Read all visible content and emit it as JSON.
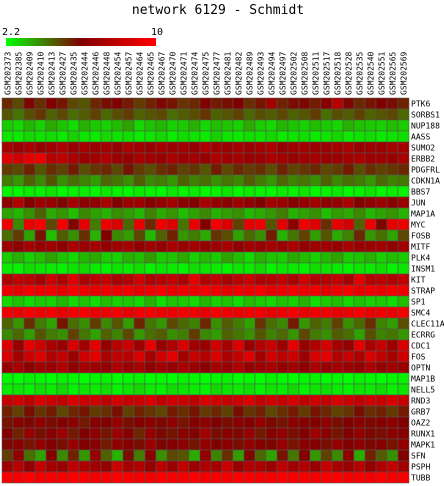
{
  "chart_data": {
    "type": "heatmap",
    "title": "network 6129 - Schmidt",
    "color_scale": {
      "min": 2.2,
      "max": 10,
      "min_label": "2.2",
      "max_label": "10",
      "low_color": "#00ff00",
      "mid_color": "#800000",
      "high_color": "#ff0000"
    },
    "columns": [
      "GSM202373",
      "GSM202385",
      "GSM202409",
      "GSM202410",
      "GSM202413",
      "GSM202427",
      "GSM202435",
      "GSM202444",
      "GSM202446",
      "GSM202448",
      "GSM202454",
      "GSM202457",
      "GSM202464",
      "GSM202465",
      "GSM202467",
      "GSM202470",
      "GSM202471",
      "GSM202474",
      "GSM202475",
      "GSM202477",
      "GSM202481",
      "GSM202482",
      "GSM202489",
      "GSM202493",
      "GSM202494",
      "GSM202497",
      "GSM202502",
      "GSM202508",
      "GSM202511",
      "GSM202517",
      "GSM202518",
      "GSM202528",
      "GSM202535",
      "GSM202540",
      "GSM202551",
      "GSM202565",
      "GSM202569"
    ],
    "rows": [
      "PTK6",
      "SORBS1",
      "NUP188",
      "AASS",
      "SUMO2",
      "ERBB2",
      "PDGFRL",
      "CDKN1A",
      "BBS7",
      "JUN",
      "MAP1A",
      "MYC",
      "FOSB",
      "MITF",
      "PLK4",
      "INSM1",
      "KIT",
      "STRAP",
      "SP1",
      "SMC4",
      "CLEC11A",
      "ECRRG",
      "CDC1",
      "FOS",
      "OPTN",
      "MAP1B",
      "NELL5",
      "RND3",
      "GRB7",
      "OAZ2",
      "RUNX1",
      "MAPK1",
      "SFN",
      "PSPH",
      "TUBB"
    ],
    "values": [
      [
        5.5,
        5.0,
        6.0,
        5.4,
        6.2,
        5.8,
        5.0,
        4.8,
        5.5,
        5.9,
        6.1,
        5.7,
        5.2,
        5.6,
        6.0,
        5.8,
        5.3,
        5.5,
        6.2,
        5.7,
        5.9,
        6.1,
        5.4,
        5.8,
        7.2,
        5.6,
        5.9,
        6.0,
        5.7,
        6.4,
        7.8,
        6.0,
        5.5,
        5.8,
        6.1,
        5.9,
        5.6
      ],
      [
        4.8,
        4.3,
        4.9,
        5.3,
        4.6,
        5.0,
        4.4,
        4.7,
        5.1,
        4.5,
        4.9,
        5.2,
        4.6,
        4.8,
        5.0,
        4.4,
        4.7,
        4.9,
        5.3,
        4.6,
        4.8,
        5.1,
        4.5,
        4.9,
        4.7,
        5.0,
        4.6,
        4.8,
        5.2,
        4.4,
        4.9,
        4.7,
        5.1,
        4.6,
        4.8,
        5.0,
        4.5
      ],
      [
        3.0,
        2.8,
        3.3,
        2.9,
        3.5,
        3.1,
        2.7,
        3.4,
        3.0,
        2.9,
        3.2,
        3.6,
        2.8,
        3.1,
        3.3,
        2.9,
        3.0,
        3.4,
        2.8,
        3.2,
        3.1,
        2.9,
        3.5,
        3.0,
        2.8,
        3.3,
        3.1,
        2.9,
        3.2,
        3.0,
        2.8,
        3.4,
        3.1,
        3.0,
        2.9,
        3.2,
        3.0
      ],
      [
        2.6,
        2.5,
        2.8,
        2.6,
        2.7,
        2.5,
        2.9,
        2.6,
        2.5,
        2.8,
        2.6,
        2.7,
        2.5,
        2.6,
        2.8,
        2.5,
        2.7,
        2.6,
        2.5,
        2.9,
        2.6,
        2.5,
        2.7,
        2.6,
        2.8,
        2.5,
        2.6,
        2.7,
        2.5,
        2.6,
        2.8,
        2.5,
        2.6,
        2.7,
        2.5,
        2.6,
        2.7
      ],
      [
        7.2,
        7.0,
        7.4,
        6.8,
        7.1,
        7.5,
        6.9,
        7.3,
        7.0,
        7.2,
        6.8,
        7.4,
        7.1,
        6.9,
        7.3,
        7.0,
        7.2,
        6.8,
        7.5,
        7.1,
        6.9,
        7.3,
        7.0,
        7.2,
        7.4,
        6.8,
        7.1,
        7.3,
        6.9,
        7.0,
        7.2,
        7.4,
        6.8,
        7.1,
        7.0,
        7.3,
        7.2
      ],
      [
        9.0,
        8.6,
        9.2,
        9.4,
        7.8,
        8.0,
        7.4,
        6.9,
        7.2,
        7.6,
        7.0,
        6.8,
        7.3,
        7.1,
        6.9,
        7.4,
        7.0,
        7.2,
        6.8,
        7.5,
        7.1,
        7.3,
        6.9,
        7.0,
        7.4,
        7.2,
        6.8,
        7.1,
        7.3,
        7.0,
        6.9,
        7.2,
        7.4,
        7.0,
        7.1,
        6.8,
        7.3
      ],
      [
        5.2,
        5.0,
        5.6,
        4.8,
        5.4,
        5.1,
        5.7,
        4.9,
        5.3,
        5.5,
        5.0,
        5.8,
        5.2,
        4.9,
        5.4,
        5.6,
        5.1,
        5.3,
        4.8,
        5.7,
        5.0,
        5.5,
        5.2,
        5.4,
        4.9,
        5.6,
        5.1,
        5.3,
        5.5,
        5.0,
        5.2,
        5.7,
        4.9,
        5.4,
        5.1,
        5.3,
        5.5
      ],
      [
        4.2,
        3.8,
        4.6,
        4.0,
        4.8,
        3.9,
        4.4,
        4.1,
        3.7,
        4.5,
        4.3,
        3.9,
        4.7,
        4.0,
        4.2,
        3.8,
        4.6,
        4.1,
        4.4,
        3.9,
        4.3,
        4.0,
        4.7,
        4.2,
        3.8,
        4.5,
        4.1,
        4.3,
        3.9,
        4.6,
        4.0,
        4.4,
        4.2,
        3.8,
        4.5,
        4.1,
        4.3
      ],
      [
        2.4,
        2.3,
        2.5,
        2.4,
        2.6,
        2.3,
        2.4,
        2.5,
        2.3,
        2.6,
        2.4,
        2.3,
        2.5,
        2.4,
        2.3,
        2.6,
        2.4,
        2.5,
        2.3,
        2.4,
        2.6,
        2.3,
        2.5,
        2.4,
        2.3,
        2.5,
        2.4,
        2.6,
        2.3,
        2.4,
        2.5,
        2.3,
        2.4,
        2.6,
        2.3,
        2.5,
        2.4
      ],
      [
        6.5,
        7.6,
        6.2,
        7.0,
        6.8,
        6.0,
        7.2,
        6.4,
        6.6,
        7.4,
        6.1,
        6.9,
        7.0,
        6.3,
        6.7,
        7.1,
        6.5,
        6.2,
        7.3,
        6.8,
        6.4,
        7.0,
        6.6,
        6.1,
        7.2,
        6.9,
        6.3,
        6.7,
        7.1,
        6.5,
        6.8,
        7.4,
        6.2,
        6.6,
        7.0,
        6.4,
        6.9
      ],
      [
        3.6,
        3.3,
        3.9,
        4.6,
        3.5,
        3.8,
        3.2,
        4.0,
        3.6,
        3.4,
        3.9,
        3.7,
        3.3,
        4.1,
        3.5,
        3.8,
        3.2,
        3.6,
        4.0,
        3.4,
        3.7,
        3.9,
        3.3,
        3.5,
        3.8,
        4.2,
        3.4,
        3.6,
        3.9,
        3.2,
        3.7,
        3.5,
        4.0,
        3.3,
        3.6,
        3.8,
        3.4
      ],
      [
        9.6,
        4.0,
        9.4,
        9.8,
        5.0,
        9.7,
        6.0,
        9.2,
        4.2,
        9.5,
        8.8,
        4.5,
        9.3,
        5.5,
        9.6,
        9.0,
        4.3,
        9.4,
        6.2,
        9.7,
        8.9,
        5.1,
        9.2,
        9.5,
        4.8,
        9.1,
        6.5,
        9.6,
        9.0,
        5.4,
        9.3,
        8.7,
        4.6,
        9.4,
        6.0,
        9.2,
        9.5
      ],
      [
        4.4,
        5.2,
        3.6,
        5.8,
        3.2,
        4.7,
        3.9,
        5.4,
        3.4,
        6.1,
        4.0,
        3.7,
        5.0,
        3.3,
        4.6,
        5.6,
        3.8,
        4.2,
        3.5,
        5.3,
        4.9,
        3.6,
        4.5,
        3.9,
        5.7,
        3.4,
        4.3,
        5.1,
        3.7,
        4.8,
        3.5,
        4.1,
        5.5,
        3.8,
        4.4,
        3.6,
        5.0
      ],
      [
        7.0,
        6.6,
        7.3,
        6.8,
        7.1,
        6.5,
        7.4,
        6.9,
        7.2,
        6.7,
        7.0,
        7.3,
        6.6,
        7.1,
        6.8,
        7.4,
        6.9,
        7.2,
        6.7,
        7.0,
        7.3,
        6.6,
        7.1,
        6.8,
        7.2,
        6.9,
        7.4,
        6.7,
        7.0,
        7.1,
        6.8,
        7.3,
        6.9,
        7.0,
        7.2,
        6.6,
        7.1
      ],
      [
        3.0,
        3.4,
        2.9,
        3.2,
        3.6,
        3.1,
        2.8,
        3.3,
        3.5,
        3.0,
        2.9,
        3.4,
        3.2,
        3.7,
        3.0,
        3.1,
        3.5,
        2.9,
        3.3,
        3.0,
        3.6,
        3.2,
        2.8,
        3.4,
        3.1,
        3.0,
        3.5,
        3.2,
        2.9,
        3.3,
        3.6,
        3.0,
        3.1,
        3.4,
        2.9,
        3.2,
        3.0
      ],
      [
        2.5,
        2.4,
        2.7,
        2.6,
        2.5,
        2.4,
        2.6,
        2.8,
        2.5,
        2.4,
        2.6,
        2.5,
        2.7,
        2.4,
        2.6,
        2.5,
        2.4,
        2.7,
        2.6,
        2.5,
        2.4,
        2.6,
        2.5,
        2.8,
        2.4,
        2.6,
        2.5,
        2.4,
        2.7,
        2.6,
        2.5,
        2.4,
        2.6,
        2.5,
        2.7,
        2.4,
        2.6
      ],
      [
        7.5,
        8.0,
        7.8,
        7.2,
        8.4,
        7.6,
        9.0,
        7.4,
        7.9,
        8.2,
        7.3,
        7.7,
        8.6,
        7.5,
        7.8,
        8.1,
        7.4,
        9.2,
        7.6,
        8.0,
        7.3,
        7.9,
        8.3,
        7.5,
        7.7,
        8.0,
        7.4,
        8.5,
        7.6,
        7.8,
        8.2,
        7.3,
        9.1,
        7.7,
        7.9,
        7.5,
        8.1
      ],
      [
        9.5,
        9.3,
        9.7,
        9.4,
        9.6,
        9.2,
        9.8,
        9.5,
        9.3,
        9.6,
        9.4,
        9.7,
        9.2,
        9.5,
        9.8,
        9.3,
        9.6,
        9.4,
        9.7,
        9.5,
        9.2,
        9.6,
        9.4,
        9.8,
        9.3,
        9.5,
        9.7,
        9.4,
        9.6,
        9.2,
        9.5,
        9.8,
        9.3,
        9.6,
        9.4,
        9.7,
        9.5
      ],
      [
        2.8,
        3.1,
        2.7,
        3.0,
        2.9,
        3.3,
        2.8,
        3.1,
        2.7,
        3.2,
        2.9,
        3.0,
        2.8,
        3.4,
        2.7,
        3.1,
        3.0,
        2.8,
        3.3,
        2.9,
        3.1,
        2.7,
        3.2,
        3.0,
        2.8,
        3.1,
        2.9,
        3.4,
        2.7,
        3.0,
        3.2,
        2.8,
        3.1,
        2.9,
        3.0,
        2.7,
        3.2
      ],
      [
        9.6,
        9.4,
        9.8,
        9.5,
        9.7,
        9.3,
        9.6,
        9.8,
        9.4,
        9.5,
        9.7,
        9.3,
        9.6,
        9.8,
        9.4,
        9.5,
        9.7,
        9.6,
        9.3,
        9.8,
        9.5,
        9.4,
        9.7,
        9.6,
        9.3,
        9.5,
        9.8,
        9.4,
        9.6,
        9.7,
        9.3,
        9.5,
        9.8,
        9.4,
        9.6,
        9.5,
        9.7
      ],
      [
        4.6,
        3.8,
        5.4,
        4.2,
        3.6,
        5.8,
        4.4,
        3.9,
        5.2,
        4.0,
        4.8,
        3.7,
        5.6,
        4.3,
        3.8,
        5.0,
        4.5,
        4.1,
        5.5,
        3.9,
        4.7,
        4.2,
        3.6,
        5.3,
        4.4,
        4.0,
        5.7,
        3.8,
        4.6,
        4.2,
        5.1,
        3.9,
        4.5,
        5.4,
        4.1,
        3.7,
        4.9
      ],
      [
        4.0,
        4.5,
        3.7,
        4.8,
        4.2,
        3.9,
        5.1,
        4.3,
        3.6,
        4.6,
        4.1,
        5.0,
        3.8,
        4.4,
        4.7,
        3.9,
        4.2,
        5.2,
        4.0,
        3.7,
        4.6,
        4.3,
        3.9,
        4.8,
        4.1,
        4.5,
        3.8,
        5.0,
        4.2,
        3.9,
        4.7,
        4.4,
        3.6,
        4.9,
        4.1,
        4.3,
        3.8
      ],
      [
        9.0,
        6.8,
        9.2,
        8.5,
        7.4,
        6.9,
        8.8,
        7.2,
        9.1,
        6.7,
        7.8,
        8.4,
        7.0,
        9.3,
        6.8,
        7.5,
        8.9,
        7.1,
        6.9,
        8.6,
        7.3,
        9.0,
        6.8,
        7.7,
        8.3,
        7.0,
        9.2,
        6.9,
        7.6,
        8.7,
        7.2,
        6.8,
        9.1,
        7.4,
        8.2,
        7.0,
        8.8
      ],
      [
        8.8,
        7.2,
        8.4,
        9.0,
        7.6,
        8.2,
        7.0,
        8.6,
        9.2,
        7.4,
        8.0,
        7.8,
        8.9,
        7.3,
        8.5,
        9.1,
        7.1,
        8.3,
        7.7,
        8.8,
        7.5,
        8.1,
        9.0,
        7.2,
        8.6,
        7.9,
        8.4,
        7.0,
        8.7,
        9.2,
        7.6,
        8.2,
        7.4,
        8.9,
        8.0,
        7.3,
        8.5
      ],
      [
        6.8,
        7.4,
        6.5,
        7.1,
        6.9,
        7.6,
        6.6,
        7.2,
        7.0,
        6.7,
        7.5,
        6.9,
        7.3,
        6.6,
        7.1,
        6.8,
        7.4,
        7.0,
        6.5,
        7.2,
        6.9,
        7.6,
        6.7,
        7.0,
        7.3,
        6.8,
        7.1,
        6.6,
        7.4,
        6.9,
        7.2,
        7.0,
        6.7,
        7.5,
        6.8,
        7.1,
        6.9
      ],
      [
        2.3,
        2.2,
        2.4,
        2.3,
        2.2,
        2.4,
        2.3,
        2.2,
        2.3,
        2.4,
        2.2,
        2.3,
        2.4,
        2.2,
        2.3,
        2.2,
        2.4,
        2.3,
        2.2,
        2.3,
        2.4,
        2.2,
        2.3,
        2.2,
        2.4,
        2.3,
        2.2,
        2.3,
        2.4,
        2.2,
        2.3,
        2.2,
        2.4,
        2.3,
        2.2,
        2.3,
        2.4
      ],
      [
        2.5,
        2.6,
        2.4,
        2.7,
        2.5,
        2.8,
        2.4,
        2.6,
        2.5,
        2.7,
        2.4,
        2.6,
        2.8,
        2.5,
        2.4,
        2.7,
        2.6,
        2.5,
        2.4,
        2.8,
        2.6,
        2.5,
        2.7,
        2.4,
        2.6,
        2.5,
        2.8,
        2.4,
        2.6,
        2.7,
        2.5,
        2.4,
        2.6,
        2.5,
        2.7,
        2.4,
        2.6
      ],
      [
        8.2,
        8.6,
        8.0,
        8.8,
        8.4,
        8.1,
        8.9,
        8.3,
        8.5,
        8.0,
        8.7,
        8.2,
        8.4,
        8.9,
        8.1,
        8.6,
        8.3,
        8.0,
        8.8,
        8.5,
        8.2,
        8.4,
        8.9,
        8.1,
        8.6,
        8.3,
        8.7,
        8.0,
        8.5,
        8.2,
        8.8,
        8.4,
        8.1,
        8.6,
        8.3,
        8.9,
        8.2
      ],
      [
        5.6,
        5.1,
        5.9,
        5.3,
        5.7,
        5.0,
        5.5,
        5.8,
        5.2,
        5.4,
        5.9,
        5.1,
        5.6,
        5.3,
        5.0,
        5.7,
        5.4,
        5.8,
        5.2,
        5.5,
        5.1,
        5.9,
        5.3,
        5.6,
        5.0,
        5.4,
        5.7,
        5.2,
        5.8,
        5.5,
        5.1,
        5.3,
        5.9,
        5.4,
        5.6,
        5.2,
        5.7
      ],
      [
        5.8,
        6.4,
        6.0,
        6.6,
        5.9,
        6.2,
        6.5,
        5.7,
        6.3,
        6.1,
        6.7,
        5.9,
        6.2,
        6.4,
        6.0,
        6.6,
        5.8,
        6.3,
        6.5,
        6.1,
        5.9,
        6.4,
        6.2,
        6.7,
        6.0,
        5.8,
        6.5,
        6.3,
        6.1,
        6.6,
        5.9,
        6.2,
        6.4,
        6.0,
        6.3,
        6.5,
        6.1
      ],
      [
        6.2,
        5.6,
        6.8,
        5.9,
        6.4,
        7.0,
        5.7,
        6.1,
        6.6,
        5.8,
        6.9,
        6.3,
        5.5,
        6.7,
        6.0,
        5.8,
        6.5,
        6.2,
        7.1,
        5.9,
        6.4,
        6.0,
        6.8,
        5.7,
        6.3,
        6.6,
        5.9,
        6.1,
        7.0,
        6.4,
        5.8,
        6.2,
        6.7,
        6.0,
        5.9,
        6.5,
        6.3
      ],
      [
        6.0,
        6.5,
        5.8,
        6.7,
        6.2,
        5.9,
        6.8,
        6.1,
        6.4,
        5.7,
        6.6,
        6.3,
        5.9,
        6.9,
        6.0,
        6.2,
        6.5,
        5.8,
        6.7,
        6.1,
        6.4,
        5.9,
        6.6,
        6.3,
        6.0,
        6.8,
        5.8,
        6.4,
        6.2,
        5.9,
        6.7,
        6.1,
        6.5,
        6.0,
        6.3,
        5.8,
        6.6
      ],
      [
        5.2,
        6.6,
        4.4,
        3.6,
        6.2,
        4.0,
        5.6,
        3.8,
        6.8,
        4.6,
        3.4,
        5.9,
        4.2,
        6.4,
        3.9,
        5.0,
        4.8,
        3.5,
        6.6,
        4.1,
        5.4,
        3.7,
        6.0,
        4.5,
        3.6,
        5.8,
        4.3,
        6.2,
        3.8,
        5.1,
        4.0,
        6.5,
        3.5,
        5.6,
        4.7,
        3.9,
        6.1
      ],
      [
        7.0,
        7.8,
        6.6,
        8.2,
        7.2,
        6.9,
        8.0,
        7.4,
        7.1,
        6.8,
        8.4,
        7.3,
        7.6,
        6.7,
        7.9,
        7.0,
        8.1,
        6.9,
        7.5,
        7.2,
        8.3,
        6.8,
        7.7,
        7.4,
        6.9,
        8.0,
        7.1,
        7.6,
        6.8,
        8.2,
        7.3,
        7.0,
        7.8,
        6.7,
        7.5,
        8.1,
        7.2
      ],
      [
        9.8,
        9.7,
        9.9,
        9.6,
        9.8,
        9.7,
        9.9,
        9.8,
        9.6,
        9.7,
        9.9,
        9.8,
        9.7,
        9.6,
        9.9,
        9.8,
        9.7,
        9.9,
        9.6,
        9.8,
        9.7,
        9.9,
        9.8,
        9.6,
        9.7,
        9.9,
        9.8,
        9.7,
        9.6,
        9.8,
        9.9,
        9.7,
        9.8,
        9.6,
        9.9,
        9.7,
        9.8
      ]
    ]
  }
}
